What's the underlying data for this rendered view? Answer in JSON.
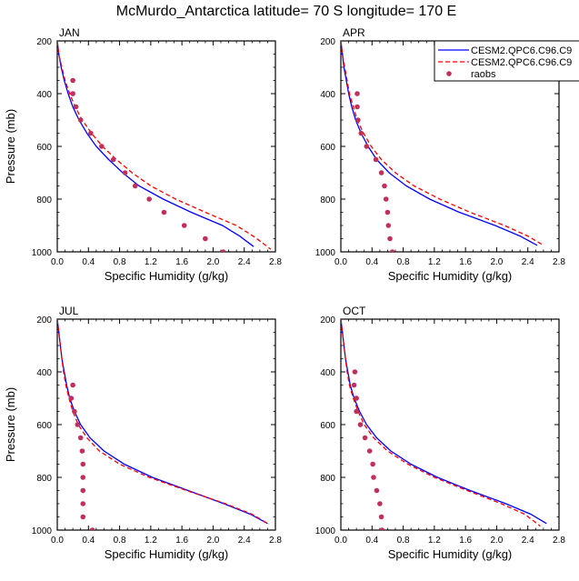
{
  "figure": {
    "title": "McMurdo_Antarctica  latitude= 70 S longitude= 170 E",
    "xlabel": "Specific Humidity (g/kg)",
    "ylabel": "Pressure (mb)",
    "xlim": [
      0,
      2.8
    ],
    "ylim": [
      200,
      1000
    ],
    "xticks": [
      "0.0",
      "0.4",
      "0.8",
      "1.2",
      "1.6",
      "2.0",
      "2.4",
      "2.8"
    ],
    "yticks": [
      "200",
      "400",
      "600",
      "800",
      "1000"
    ],
    "legend": {
      "placement": "top-right of APR panel",
      "entries": [
        {
          "label": "CESM2.QPC6.C96.C9",
          "style": "solid",
          "color": "#0000ff"
        },
        {
          "label": "CESM2.QPC6.C96.C9",
          "style": "dashed",
          "color": "#ff0000"
        },
        {
          "label": "raobs",
          "style": "dot",
          "color": "#c0305a"
        }
      ]
    },
    "colors": {
      "model1": "#0000ff",
      "model2": "#ff0000",
      "obs": "#c0305a"
    }
  },
  "chart_data": [
    {
      "type": "line",
      "panel": "JAN",
      "title": "JAN",
      "series": [
        {
          "name": "CESM2.QPC6.C96.C9",
          "style": "solid",
          "points": [
            [
              0.0,
              200
            ],
            [
              0.02,
              250
            ],
            [
              0.05,
              300
            ],
            [
              0.09,
              350
            ],
            [
              0.14,
              400
            ],
            [
              0.2,
              450
            ],
            [
              0.28,
              500
            ],
            [
              0.38,
              550
            ],
            [
              0.5,
              600
            ],
            [
              0.66,
              650
            ],
            [
              0.84,
              700
            ],
            [
              1.05,
              750
            ],
            [
              1.36,
              800
            ],
            [
              1.72,
              850
            ],
            [
              2.12,
              900
            ],
            [
              2.34,
              940
            ],
            [
              2.52,
              980
            ]
          ]
        },
        {
          "name": "CESM2.QPC6.C96.C9",
          "style": "dashed",
          "points": [
            [
              0.0,
              200
            ],
            [
              0.02,
              250
            ],
            [
              0.06,
              300
            ],
            [
              0.1,
              350
            ],
            [
              0.16,
              400
            ],
            [
              0.23,
              450
            ],
            [
              0.32,
              500
            ],
            [
              0.44,
              550
            ],
            [
              0.58,
              600
            ],
            [
              0.76,
              650
            ],
            [
              0.96,
              700
            ],
            [
              1.2,
              750
            ],
            [
              1.52,
              800
            ],
            [
              1.9,
              850
            ],
            [
              2.3,
              900
            ],
            [
              2.54,
              945
            ],
            [
              2.74,
              990
            ]
          ]
        },
        {
          "name": "raobs",
          "style": "dot",
          "points": [
            [
              0.2,
              350
            ],
            [
              0.2,
              400
            ],
            [
              0.24,
              450
            ],
            [
              0.3,
              500
            ],
            [
              0.43,
              550
            ],
            [
              0.57,
              600
            ],
            [
              0.72,
              650
            ],
            [
              0.87,
              700
            ],
            [
              1.0,
              750
            ],
            [
              1.18,
              800
            ],
            [
              1.37,
              850
            ],
            [
              1.63,
              900
            ],
            [
              1.9,
              950
            ],
            [
              2.13,
              1000
            ]
          ]
        }
      ]
    },
    {
      "type": "line",
      "panel": "APR",
      "title": "APR",
      "series": [
        {
          "name": "CESM2.QPC6.C96.C9",
          "style": "solid",
          "points": [
            [
              0.0,
              200
            ],
            [
              0.02,
              250
            ],
            [
              0.04,
              300
            ],
            [
              0.07,
              350
            ],
            [
              0.1,
              400
            ],
            [
              0.14,
              450
            ],
            [
              0.19,
              500
            ],
            [
              0.26,
              550
            ],
            [
              0.35,
              600
            ],
            [
              0.46,
              650
            ],
            [
              0.62,
              700
            ],
            [
              0.84,
              750
            ],
            [
              1.14,
              800
            ],
            [
              1.52,
              850
            ],
            [
              1.98,
              900
            ],
            [
              2.3,
              940
            ],
            [
              2.52,
              975
            ]
          ]
        },
        {
          "name": "CESM2.QPC6.C96.C9",
          "style": "dashed",
          "points": [
            [
              0.0,
              200
            ],
            [
              0.02,
              250
            ],
            [
              0.05,
              300
            ],
            [
              0.08,
              350
            ],
            [
              0.11,
              400
            ],
            [
              0.16,
              450
            ],
            [
              0.21,
              500
            ],
            [
              0.29,
              550
            ],
            [
              0.39,
              600
            ],
            [
              0.52,
              650
            ],
            [
              0.7,
              700
            ],
            [
              0.94,
              750
            ],
            [
              1.27,
              800
            ],
            [
              1.66,
              850
            ],
            [
              2.1,
              900
            ],
            [
              2.4,
              940
            ],
            [
              2.6,
              975
            ]
          ]
        },
        {
          "name": "raobs",
          "style": "dot",
          "points": [
            [
              0.21,
              400
            ],
            [
              0.21,
              450
            ],
            [
              0.22,
              500
            ],
            [
              0.26,
              550
            ],
            [
              0.33,
              600
            ],
            [
              0.45,
              650
            ],
            [
              0.52,
              700
            ],
            [
              0.56,
              750
            ],
            [
              0.58,
              800
            ],
            [
              0.6,
              850
            ],
            [
              0.61,
              900
            ],
            [
              0.63,
              950
            ],
            [
              0.66,
              1000
            ]
          ]
        }
      ]
    },
    {
      "type": "line",
      "panel": "JUL",
      "title": "JUL",
      "series": [
        {
          "name": "CESM2.QPC6.C96.C9",
          "style": "solid",
          "points": [
            [
              0.0,
              200
            ],
            [
              0.02,
              250
            ],
            [
              0.04,
              300
            ],
            [
              0.06,
              350
            ],
            [
              0.09,
              400
            ],
            [
              0.12,
              450
            ],
            [
              0.16,
              500
            ],
            [
              0.22,
              550
            ],
            [
              0.3,
              600
            ],
            [
              0.42,
              650
            ],
            [
              0.6,
              700
            ],
            [
              0.86,
              750
            ],
            [
              1.22,
              800
            ],
            [
              1.68,
              850
            ],
            [
              2.14,
              900
            ],
            [
              2.48,
              940
            ],
            [
              2.7,
              975
            ]
          ]
        },
        {
          "name": "CESM2.QPC6.C96.C9",
          "style": "dashed",
          "points": [
            [
              0.0,
              200
            ],
            [
              0.02,
              250
            ],
            [
              0.04,
              300
            ],
            [
              0.06,
              350
            ],
            [
              0.08,
              400
            ],
            [
              0.11,
              450
            ],
            [
              0.15,
              500
            ],
            [
              0.2,
              550
            ],
            [
              0.27,
              600
            ],
            [
              0.38,
              650
            ],
            [
              0.54,
              700
            ],
            [
              0.8,
              750
            ],
            [
              1.18,
              800
            ],
            [
              1.66,
              850
            ],
            [
              2.16,
              900
            ],
            [
              2.5,
              940
            ],
            [
              2.72,
              978
            ]
          ]
        },
        {
          "name": "raobs",
          "style": "dot",
          "points": [
            [
              0.2,
              450
            ],
            [
              0.18,
              500
            ],
            [
              0.22,
              550
            ],
            [
              0.26,
              600
            ],
            [
              0.3,
              650
            ],
            [
              0.32,
              700
            ],
            [
              0.33,
              750
            ],
            [
              0.33,
              800
            ],
            [
              0.33,
              850
            ],
            [
              0.33,
              900
            ],
            [
              0.33,
              950
            ],
            [
              0.45,
              1000
            ]
          ]
        }
      ]
    },
    {
      "type": "line",
      "panel": "OCT",
      "title": "OCT",
      "series": [
        {
          "name": "CESM2.QPC6.C96.C9",
          "style": "solid",
          "points": [
            [
              0.0,
              200
            ],
            [
              0.02,
              250
            ],
            [
              0.04,
              300
            ],
            [
              0.06,
              350
            ],
            [
              0.09,
              400
            ],
            [
              0.12,
              450
            ],
            [
              0.17,
              500
            ],
            [
              0.24,
              550
            ],
            [
              0.33,
              600
            ],
            [
              0.46,
              650
            ],
            [
              0.64,
              700
            ],
            [
              0.9,
              750
            ],
            [
              1.24,
              800
            ],
            [
              1.66,
              850
            ],
            [
              2.12,
              900
            ],
            [
              2.44,
              940
            ],
            [
              2.64,
              975
            ]
          ]
        },
        {
          "name": "CESM2.QPC6.C96.C9",
          "style": "dashed",
          "points": [
            [
              0.0,
              200
            ],
            [
              0.02,
              250
            ],
            [
              0.04,
              300
            ],
            [
              0.06,
              350
            ],
            [
              0.08,
              400
            ],
            [
              0.11,
              450
            ],
            [
              0.16,
              500
            ],
            [
              0.22,
              550
            ],
            [
              0.3,
              600
            ],
            [
              0.42,
              650
            ],
            [
              0.6,
              700
            ],
            [
              0.86,
              750
            ],
            [
              1.2,
              800
            ],
            [
              1.62,
              850
            ],
            [
              2.06,
              900
            ],
            [
              2.36,
              940
            ],
            [
              2.56,
              985
            ]
          ]
        },
        {
          "name": "raobs",
          "style": "dot",
          "points": [
            [
              0.18,
              400
            ],
            [
              0.17,
              450
            ],
            [
              0.2,
              500
            ],
            [
              0.2,
              550
            ],
            [
              0.25,
              600
            ],
            [
              0.31,
              650
            ],
            [
              0.37,
              700
            ],
            [
              0.41,
              750
            ],
            [
              0.42,
              800
            ],
            [
              0.46,
              850
            ],
            [
              0.5,
              900
            ],
            [
              0.52,
              950
            ],
            [
              0.53,
              1000
            ]
          ]
        }
      ]
    }
  ]
}
